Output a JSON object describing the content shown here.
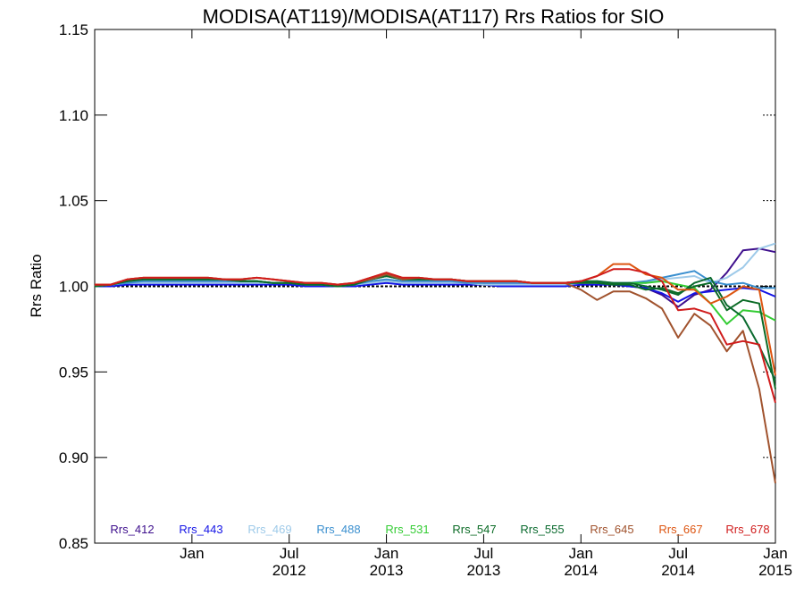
{
  "chart_data": {
    "type": "line",
    "title": "MODISA(AT119)/MODISA(AT117)  Rrs Ratios for SIO",
    "xlabel": "",
    "ylabel": "Rrs Ratio",
    "xlim": [
      "2011-07",
      "2015-01"
    ],
    "ylim": [
      0.85,
      1.15
    ],
    "yticks": [
      "0.85",
      "0.90",
      "0.95",
      "1.00",
      "1.05",
      "1.10",
      "1.15"
    ],
    "xticks": [
      {
        "date": "2012-01",
        "line1": "Jan",
        "line2": ""
      },
      {
        "date": "2012-07",
        "line1": "Jul",
        "line2": "2012"
      },
      {
        "date": "2013-01",
        "line1": "Jan",
        "line2": "2013"
      },
      {
        "date": "2013-07",
        "line1": "Jul",
        "line2": "2013"
      },
      {
        "date": "2014-01",
        "line1": "Jan",
        "line2": "2014"
      },
      {
        "date": "2014-07",
        "line1": "Jul",
        "line2": "2014"
      },
      {
        "date": "2015-01",
        "line1": "Jan",
        "line2": "2015"
      }
    ],
    "reference_line": 1.0,
    "grid": false,
    "legend_position": "bottom",
    "colors": {
      "Rrs_412": "#3d0e8c",
      "Rrs_443": "#1414e6",
      "Rrs_469": "#9ecae9",
      "Rrs_488": "#3a8fcf",
      "Rrs_531": "#33cc33",
      "Rrs_547": "#0b6b26",
      "Rrs_555": "#0a6a2e",
      "Rrs_645": "#a0522d",
      "Rrs_667": "#dd5511",
      "Rrs_678": "#d01c1c"
    },
    "x": [
      "2011-07",
      "2011-08",
      "2011-09",
      "2011-10",
      "2011-11",
      "2011-12",
      "2012-01",
      "2012-02",
      "2012-03",
      "2012-04",
      "2012-05",
      "2012-06",
      "2012-07",
      "2012-08",
      "2012-09",
      "2012-10",
      "2012-11",
      "2012-12",
      "2013-01",
      "2013-02",
      "2013-03",
      "2013-04",
      "2013-05",
      "2013-06",
      "2013-07",
      "2013-08",
      "2013-09",
      "2013-10",
      "2013-11",
      "2013-12",
      "2014-01",
      "2014-02",
      "2014-03",
      "2014-04",
      "2014-05",
      "2014-06",
      "2014-07",
      "2014-08",
      "2014-09",
      "2014-10",
      "2014-11",
      "2014-12",
      "2015-01"
    ],
    "series": [
      {
        "name": "Rrs_412",
        "values": [
          1.0,
          1.001,
          1.002,
          1.002,
          1.002,
          1.002,
          1.002,
          1.002,
          1.002,
          1.002,
          1.002,
          1.002,
          1.002,
          1.001,
          1.001,
          1.0,
          1.001,
          1.002,
          1.003,
          1.002,
          1.002,
          1.002,
          1.002,
          1.001,
          1.001,
          1.001,
          1.001,
          1.001,
          1.001,
          1.001,
          1.001,
          1.001,
          1.001,
          1.0,
          0.999,
          0.995,
          0.988,
          0.995,
          0.998,
          1.008,
          1.021,
          1.022,
          1.02
        ]
      },
      {
        "name": "Rrs_443",
        "values": [
          1.0,
          1.0,
          1.001,
          1.001,
          1.001,
          1.001,
          1.001,
          1.001,
          1.001,
          1.001,
          1.001,
          1.001,
          1.001,
          1.0,
          1.0,
          1.0,
          1.0,
          1.001,
          1.002,
          1.001,
          1.001,
          1.001,
          1.001,
          1.001,
          1.001,
          1.0,
          1.0,
          1.0,
          1.0,
          1.0,
          1.001,
          1.001,
          1.001,
          1.0,
          0.999,
          0.996,
          0.991,
          0.996,
          0.997,
          0.998,
          0.999,
          0.998,
          0.994
        ]
      },
      {
        "name": "Rrs_469",
        "values": [
          1.0,
          1.001,
          1.002,
          1.002,
          1.002,
          1.002,
          1.002,
          1.002,
          1.002,
          1.002,
          1.002,
          1.002,
          1.002,
          1.001,
          1.001,
          1.0,
          1.001,
          1.002,
          1.003,
          1.002,
          1.002,
          1.002,
          1.002,
          1.002,
          1.001,
          1.001,
          1.001,
          1.001,
          1.001,
          1.001,
          1.002,
          1.002,
          1.002,
          1.002,
          1.002,
          1.004,
          1.005,
          1.006,
          1.002,
          1.005,
          1.011,
          1.022,
          1.025
        ]
      },
      {
        "name": "Rrs_488",
        "values": [
          1.0,
          1.001,
          1.002,
          1.003,
          1.003,
          1.003,
          1.003,
          1.003,
          1.003,
          1.003,
          1.003,
          1.002,
          1.002,
          1.001,
          1.001,
          1.0,
          1.001,
          1.003,
          1.004,
          1.003,
          1.003,
          1.003,
          1.003,
          1.002,
          1.002,
          1.002,
          1.002,
          1.002,
          1.002,
          1.002,
          1.002,
          1.003,
          1.002,
          1.002,
          1.003,
          1.005,
          1.007,
          1.009,
          1.003,
          1.001,
          1.002,
          0.999,
          0.999
        ]
      },
      {
        "name": "Rrs_531",
        "values": [
          1.0,
          1.001,
          1.003,
          1.004,
          1.004,
          1.004,
          1.004,
          1.004,
          1.004,
          1.003,
          1.003,
          1.002,
          1.002,
          1.001,
          1.001,
          1.0,
          1.001,
          1.004,
          1.006,
          1.004,
          1.004,
          1.004,
          1.004,
          1.003,
          1.003,
          1.003,
          1.003,
          1.002,
          1.002,
          1.002,
          1.003,
          1.002,
          1.001,
          1.002,
          1.002,
          1.003,
          1.001,
          0.999,
          0.99,
          0.978,
          0.986,
          0.985,
          0.98
        ]
      },
      {
        "name": "Rrs_547",
        "values": [
          1.0,
          1.001,
          1.003,
          1.004,
          1.004,
          1.004,
          1.004,
          1.004,
          1.004,
          1.003,
          1.003,
          1.002,
          1.002,
          1.001,
          1.001,
          1.0,
          1.001,
          1.004,
          1.006,
          1.004,
          1.004,
          1.004,
          1.004,
          1.003,
          1.003,
          1.003,
          1.003,
          1.002,
          1.002,
          1.002,
          1.002,
          1.002,
          1.001,
          1.001,
          0.998,
          0.999,
          0.996,
          1.0,
          1.002,
          0.986,
          0.992,
          0.99,
          0.94
        ]
      },
      {
        "name": "Rrs_555",
        "values": [
          1.0,
          1.001,
          1.003,
          1.004,
          1.004,
          1.004,
          1.004,
          1.004,
          1.004,
          1.003,
          1.003,
          1.002,
          1.002,
          1.001,
          1.001,
          1.0,
          1.001,
          1.004,
          1.006,
          1.004,
          1.004,
          1.004,
          1.004,
          1.003,
          1.003,
          1.003,
          1.003,
          1.002,
          1.002,
          1.002,
          1.003,
          1.003,
          1.002,
          1.002,
          1.0,
          0.998,
          0.995,
          1.002,
          1.005,
          0.989,
          0.982,
          0.965,
          0.945
        ]
      },
      {
        "name": "Rrs_645",
        "values": [
          1.001,
          1.001,
          1.004,
          1.005,
          1.005,
          1.005,
          1.005,
          1.005,
          1.004,
          1.004,
          1.005,
          1.004,
          1.003,
          1.002,
          1.002,
          1.001,
          1.002,
          1.004,
          1.007,
          1.004,
          1.005,
          1.004,
          1.004,
          1.003,
          1.003,
          1.003,
          1.003,
          1.002,
          1.002,
          1.002,
          0.998,
          0.992,
          0.997,
          0.997,
          0.993,
          0.987,
          0.97,
          0.984,
          0.977,
          0.962,
          0.974,
          0.94,
          0.885
        ]
      },
      {
        "name": "Rrs_667",
        "values": [
          1.001,
          1.001,
          1.004,
          1.005,
          1.005,
          1.005,
          1.005,
          1.005,
          1.004,
          1.004,
          1.005,
          1.004,
          1.003,
          1.002,
          1.002,
          1.001,
          1.002,
          1.005,
          1.008,
          1.005,
          1.005,
          1.004,
          1.004,
          1.003,
          1.003,
          1.003,
          1.003,
          1.002,
          1.002,
          1.002,
          1.003,
          1.006,
          1.013,
          1.013,
          1.007,
          1.005,
          0.998,
          0.998,
          0.99,
          0.994,
          1.0,
          0.998,
          0.948
        ]
      },
      {
        "name": "Rrs_678",
        "values": [
          1.001,
          1.001,
          1.004,
          1.005,
          1.005,
          1.005,
          1.005,
          1.005,
          1.004,
          1.004,
          1.005,
          1.004,
          1.003,
          1.002,
          1.002,
          1.001,
          1.002,
          1.005,
          1.008,
          1.005,
          1.005,
          1.004,
          1.004,
          1.003,
          1.003,
          1.003,
          1.003,
          1.002,
          1.002,
          1.002,
          1.003,
          1.006,
          1.01,
          1.01,
          1.008,
          1.003,
          0.986,
          0.987,
          0.984,
          0.966,
          0.968,
          0.966,
          0.932
        ]
      }
    ]
  }
}
